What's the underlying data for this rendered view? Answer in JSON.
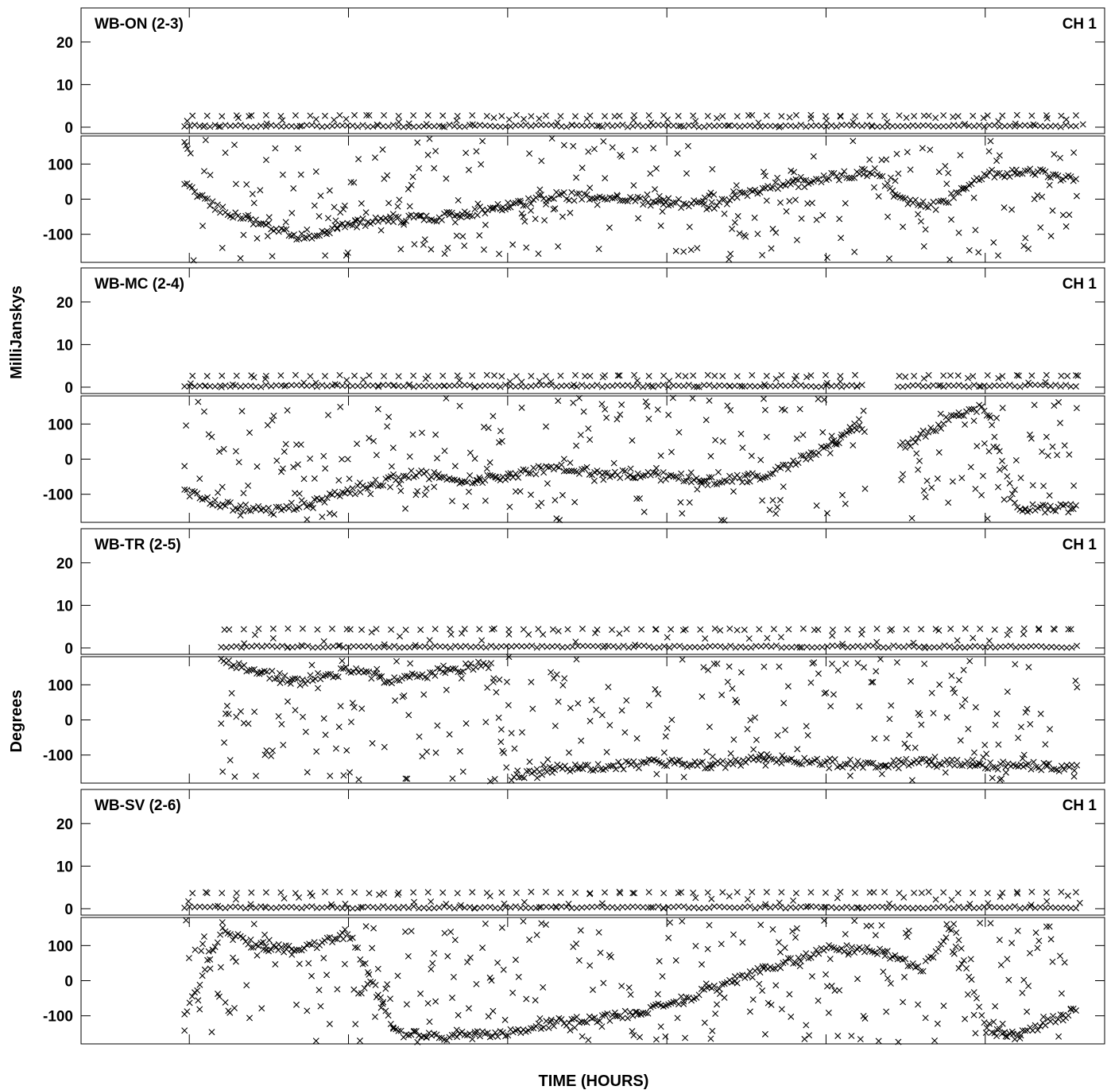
{
  "chart_data": {
    "type": "scatter",
    "xlabel": "TIME (HOURS)",
    "xlim": [
      16.32,
      22.75
    ],
    "xticks": [
      17,
      18,
      19,
      20,
      21,
      22
    ],
    "ylabel_amp": "MilliJanskys",
    "ylabel_phase": "Degrees",
    "amp_ylim": [
      -1.5,
      28
    ],
    "amp_ticks": [
      0,
      10,
      20
    ],
    "phase_ylim": [
      -180,
      180
    ],
    "phase_ticks": [
      -100,
      0,
      100
    ],
    "marker": "x",
    "panels": [
      {
        "baseline": "WB-ON (2-3)",
        "channel": "CH 1",
        "amp": {
          "start": 16.97,
          "end": 22.58,
          "base": 0.3,
          "high": 2.7,
          "step_peak": 2.8
        },
        "phase": {
          "start": 16.97,
          "end": 22.58,
          "trend": [
            [
              16.97,
              40
            ],
            [
              17.2,
              -30
            ],
            [
              17.4,
              -60
            ],
            [
              17.7,
              -110
            ],
            [
              18.0,
              -70
            ],
            [
              18.3,
              -60
            ],
            [
              18.6,
              -50
            ],
            [
              19.0,
              -20
            ],
            [
              19.3,
              10
            ],
            [
              19.7,
              0
            ],
            [
              20.0,
              -10
            ],
            [
              20.3,
              -20
            ],
            [
              20.5,
              20
            ],
            [
              20.8,
              50
            ],
            [
              21.0,
              60
            ],
            [
              21.3,
              80
            ],
            [
              21.5,
              -10
            ],
            [
              21.7,
              -20
            ],
            [
              22.0,
              70
            ],
            [
              22.3,
              80
            ],
            [
              22.58,
              50
            ]
          ]
        }
      },
      {
        "baseline": "WB-MC (2-4)",
        "channel": "CH 1",
        "amp": {
          "start": 16.97,
          "end": 22.58,
          "base": 0.3,
          "high": 2.7,
          "step_peak": 2.8,
          "gap": [
            21.25,
            21.45
          ]
        },
        "phase": {
          "start": 16.97,
          "end": 22.58,
          "gap": [
            21.25,
            21.45
          ],
          "trend": [
            [
              16.97,
              -90
            ],
            [
              17.2,
              -130
            ],
            [
              17.5,
              -150
            ],
            [
              17.8,
              -120
            ],
            [
              18.1,
              -80
            ],
            [
              18.4,
              -40
            ],
            [
              18.7,
              -60
            ],
            [
              19.0,
              -50
            ],
            [
              19.3,
              -20
            ],
            [
              19.6,
              -40
            ],
            [
              20.0,
              -50
            ],
            [
              20.3,
              -60
            ],
            [
              20.6,
              -50
            ],
            [
              21.0,
              30
            ],
            [
              21.2,
              90
            ],
            [
              21.5,
              40
            ],
            [
              21.8,
              120
            ],
            [
              22.0,
              150
            ],
            [
              22.2,
              -140
            ],
            [
              22.58,
              -140
            ]
          ]
        }
      },
      {
        "baseline": "WB-TR (2-5)",
        "channel": "CH 1",
        "amp": {
          "start": 17.2,
          "end": 22.58,
          "base": 0.3,
          "high": 4.4,
          "step_peak": 4.5
        },
        "phase": {
          "start": 17.2,
          "end": 22.58,
          "trend": [
            [
              17.2,
              170
            ],
            [
              17.4,
              140
            ],
            [
              17.7,
              110
            ],
            [
              18.0,
              140
            ],
            [
              18.3,
              110
            ],
            [
              18.6,
              140
            ],
            [
              18.9,
              160
            ],
            [
              19.0,
              -170
            ],
            [
              19.3,
              -140
            ],
            [
              19.7,
              -130
            ],
            [
              20.0,
              -120
            ],
            [
              20.3,
              -130
            ],
            [
              20.6,
              -110
            ],
            [
              21.0,
              -120
            ],
            [
              21.3,
              -130
            ],
            [
              21.6,
              -120
            ],
            [
              22.0,
              -130
            ],
            [
              22.3,
              -130
            ],
            [
              22.58,
              -140
            ]
          ]
        }
      },
      {
        "baseline": "WB-SV (2-6)",
        "channel": "CH 1",
        "amp": {
          "start": 16.97,
          "end": 22.58,
          "base": 0.3,
          "high": 3.8,
          "step_peak": 3.9
        },
        "phase": {
          "start": 16.97,
          "end": 22.58,
          "trend": [
            [
              16.97,
              -100
            ],
            [
              17.2,
              140
            ],
            [
              17.5,
              90
            ],
            [
              17.8,
              100
            ],
            [
              18.0,
              140
            ],
            [
              18.3,
              -150
            ],
            [
              18.6,
              -160
            ],
            [
              19.0,
              -150
            ],
            [
              19.3,
              -120
            ],
            [
              19.7,
              -100
            ],
            [
              20.0,
              -70
            ],
            [
              20.3,
              -20
            ],
            [
              20.6,
              30
            ],
            [
              20.8,
              60
            ],
            [
              21.0,
              90
            ],
            [
              21.3,
              90
            ],
            [
              21.6,
              30
            ],
            [
              21.8,
              160
            ],
            [
              22.0,
              -130
            ],
            [
              22.2,
              -160
            ],
            [
              22.58,
              -80
            ]
          ]
        }
      }
    ]
  }
}
